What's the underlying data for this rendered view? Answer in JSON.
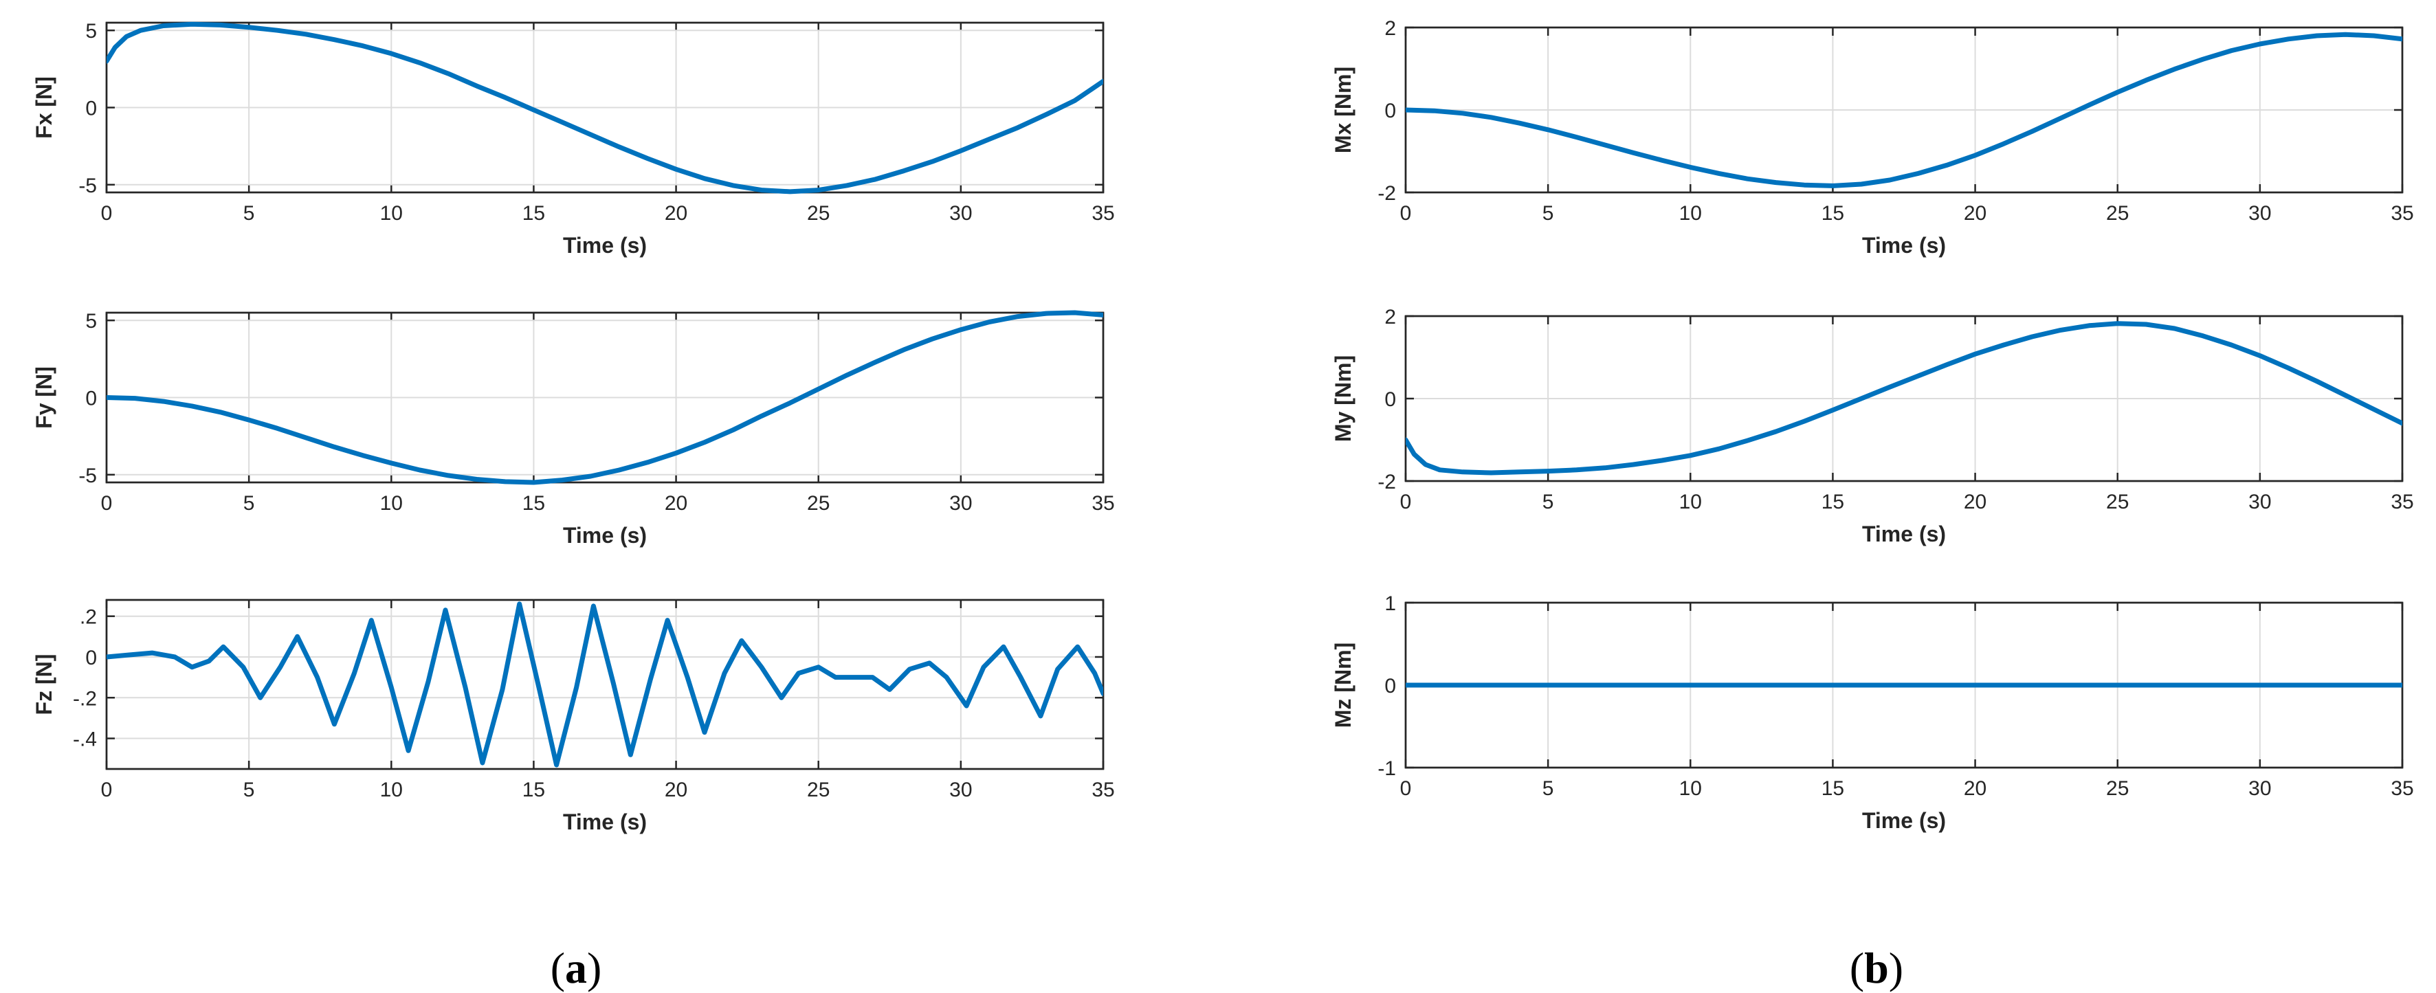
{
  "style": {
    "line_color": "#0072bd"
  },
  "panel_labels": {
    "a": {
      "open": "(",
      "letter": "a",
      "close": ")"
    },
    "b": {
      "open": "(",
      "letter": "b",
      "close": ")"
    }
  },
  "chart_data": [
    {
      "id": "fx",
      "type": "line",
      "xlabel": "Time (s)",
      "ylabel": "Fx [N]",
      "xlim": [
        0,
        35
      ],
      "ylim": [
        -5.5,
        5.5
      ],
      "xticks": [
        0,
        5,
        10,
        15,
        20,
        25,
        30,
        35
      ],
      "yticks": [
        -5,
        0,
        5
      ],
      "grid": true,
      "series": [
        {
          "x": [
            0,
            0.3,
            0.7,
            1.2,
            2,
            3,
            4,
            5,
            6,
            7,
            8,
            9,
            10,
            11,
            12,
            13,
            14,
            15,
            16,
            17,
            18,
            19,
            20,
            21,
            22,
            23,
            24,
            25,
            26,
            27,
            28,
            29,
            30,
            31,
            32,
            33,
            34,
            35
          ],
          "y": [
            3.0,
            3.9,
            4.6,
            5.0,
            5.3,
            5.4,
            5.35,
            5.2,
            5.0,
            4.75,
            4.4,
            4.0,
            3.5,
            2.9,
            2.2,
            1.4,
            0.65,
            -0.15,
            -0.95,
            -1.75,
            -2.55,
            -3.3,
            -4.0,
            -4.6,
            -5.05,
            -5.35,
            -5.45,
            -5.35,
            -5.05,
            -4.65,
            -4.1,
            -3.5,
            -2.8,
            -2.05,
            -1.3,
            -0.45,
            0.45,
            1.7
          ]
        }
      ]
    },
    {
      "id": "fy",
      "type": "line",
      "xlabel": "Time (s)",
      "ylabel": "Fy [N]",
      "xlim": [
        0,
        35
      ],
      "ylim": [
        -5.5,
        5.5
      ],
      "xticks": [
        0,
        5,
        10,
        15,
        20,
        25,
        30,
        35
      ],
      "yticks": [
        -5,
        0,
        5
      ],
      "grid": true,
      "series": [
        {
          "x": [
            0,
            1,
            2,
            3,
            4,
            5,
            6,
            7,
            8,
            9,
            10,
            11,
            12,
            13,
            14,
            15,
            16,
            17,
            18,
            19,
            20,
            21,
            22,
            23,
            24,
            25,
            26,
            27,
            28,
            29,
            30,
            31,
            32,
            33,
            34,
            35
          ],
          "y": [
            0.0,
            -0.05,
            -0.25,
            -0.55,
            -0.95,
            -1.45,
            -2.0,
            -2.6,
            -3.2,
            -3.75,
            -4.25,
            -4.7,
            -5.05,
            -5.3,
            -5.45,
            -5.5,
            -5.35,
            -5.1,
            -4.7,
            -4.2,
            -3.6,
            -2.9,
            -2.1,
            -1.2,
            -0.35,
            0.55,
            1.45,
            2.3,
            3.1,
            3.8,
            4.4,
            4.9,
            5.25,
            5.45,
            5.5,
            5.35
          ]
        }
      ]
    },
    {
      "id": "fz",
      "type": "line",
      "xlabel": "Time (s)",
      "ylabel": "Fz [N]",
      "xlim": [
        0,
        35
      ],
      "ylim": [
        -0.55,
        0.28
      ],
      "xticks": [
        0,
        5,
        10,
        15,
        20,
        25,
        30,
        35
      ],
      "yticks": [
        -0.4,
        -0.2,
        0,
        0.2
      ],
      "grid": true,
      "series": [
        {
          "x": [
            0,
            0.8,
            1.6,
            2.4,
            3.0,
            3.6,
            4.1,
            4.8,
            5.4,
            6.1,
            6.7,
            7.4,
            8.0,
            8.7,
            9.3,
            10.0,
            10.6,
            11.3,
            11.9,
            12.6,
            13.2,
            13.9,
            14.5,
            15.2,
            15.8,
            16.5,
            17.1,
            17.8,
            18.4,
            19.1,
            19.7,
            20.4,
            21.0,
            21.7,
            22.3,
            23.0,
            23.7,
            24.3,
            25.0,
            25.6,
            26.2,
            26.9,
            27.5,
            28.2,
            28.9,
            29.5,
            30.2,
            30.8,
            31.5,
            32.1,
            32.8,
            33.4,
            34.1,
            34.7,
            35.0
          ],
          "y": [
            0.0,
            0.01,
            0.02,
            0.0,
            -0.05,
            -0.02,
            0.05,
            -0.05,
            -0.2,
            -0.05,
            0.1,
            -0.1,
            -0.33,
            -0.08,
            0.18,
            -0.15,
            -0.46,
            -0.12,
            0.23,
            -0.15,
            -0.52,
            -0.16,
            0.26,
            -0.16,
            -0.53,
            -0.15,
            0.25,
            -0.13,
            -0.48,
            -0.11,
            0.18,
            -0.1,
            -0.37,
            -0.08,
            0.08,
            -0.05,
            -0.2,
            -0.08,
            -0.05,
            -0.1,
            -0.1,
            -0.1,
            -0.16,
            -0.06,
            -0.03,
            -0.1,
            -0.24,
            -0.05,
            0.05,
            -0.1,
            -0.29,
            -0.06,
            0.05,
            -0.08,
            -0.18
          ]
        }
      ]
    },
    {
      "id": "mx",
      "type": "line",
      "xlabel": "Time (s)",
      "ylabel": "Mx [Nm]",
      "xlim": [
        0,
        35
      ],
      "ylim": [
        -2,
        2
      ],
      "xticks": [
        0,
        5,
        10,
        15,
        20,
        25,
        30,
        35
      ],
      "yticks": [
        -2,
        0,
        2
      ],
      "grid": true,
      "series": [
        {
          "x": [
            0,
            1,
            2,
            3,
            4,
            5,
            6,
            7,
            8,
            9,
            10,
            11,
            12,
            13,
            14,
            15,
            16,
            17,
            18,
            19,
            20,
            21,
            22,
            23,
            24,
            25,
            26,
            27,
            28,
            29,
            30,
            31,
            32,
            33,
            34,
            35
          ],
          "y": [
            0.0,
            -0.02,
            -0.08,
            -0.18,
            -0.32,
            -0.48,
            -0.66,
            -0.85,
            -1.04,
            -1.22,
            -1.39,
            -1.54,
            -1.67,
            -1.76,
            -1.82,
            -1.84,
            -1.8,
            -1.7,
            -1.54,
            -1.34,
            -1.1,
            -0.82,
            -0.52,
            -0.2,
            0.12,
            0.43,
            0.72,
            0.99,
            1.23,
            1.44,
            1.6,
            1.72,
            1.8,
            1.83,
            1.8,
            1.72
          ]
        }
      ]
    },
    {
      "id": "my",
      "type": "line",
      "xlabel": "Time (s)",
      "ylabel": "My [Nm]",
      "xlim": [
        0,
        35
      ],
      "ylim": [
        -2,
        2
      ],
      "xticks": [
        0,
        5,
        10,
        15,
        20,
        25,
        30,
        35
      ],
      "yticks": [
        -2,
        0,
        2
      ],
      "grid": true,
      "series": [
        {
          "x": [
            0,
            0.3,
            0.7,
            1.2,
            2,
            3,
            4,
            5,
            6,
            7,
            8,
            9,
            10,
            11,
            12,
            13,
            14,
            15,
            16,
            17,
            18,
            19,
            20,
            21,
            22,
            23,
            24,
            25,
            26,
            27,
            28,
            29,
            30,
            31,
            32,
            33,
            34,
            35
          ],
          "y": [
            -1.0,
            -1.35,
            -1.6,
            -1.73,
            -1.78,
            -1.8,
            -1.78,
            -1.76,
            -1.73,
            -1.68,
            -1.6,
            -1.5,
            -1.38,
            -1.22,
            -1.02,
            -0.8,
            -0.55,
            -0.28,
            0.0,
            0.28,
            0.55,
            0.82,
            1.08,
            1.3,
            1.5,
            1.66,
            1.77,
            1.82,
            1.8,
            1.7,
            1.52,
            1.3,
            1.04,
            0.74,
            0.42,
            0.08,
            -0.26,
            -0.6
          ]
        }
      ]
    },
    {
      "id": "mz",
      "type": "line",
      "xlabel": "Time (s)",
      "ylabel": "Mz [Nm]",
      "xlim": [
        0,
        35
      ],
      "ylim": [
        -1,
        1
      ],
      "xticks": [
        0,
        5,
        10,
        15,
        20,
        25,
        30,
        35
      ],
      "yticks": [
        -1,
        0,
        1
      ],
      "grid": true,
      "series": [
        {
          "x": [
            0,
            35
          ],
          "y": [
            0,
            0
          ]
        }
      ]
    }
  ]
}
